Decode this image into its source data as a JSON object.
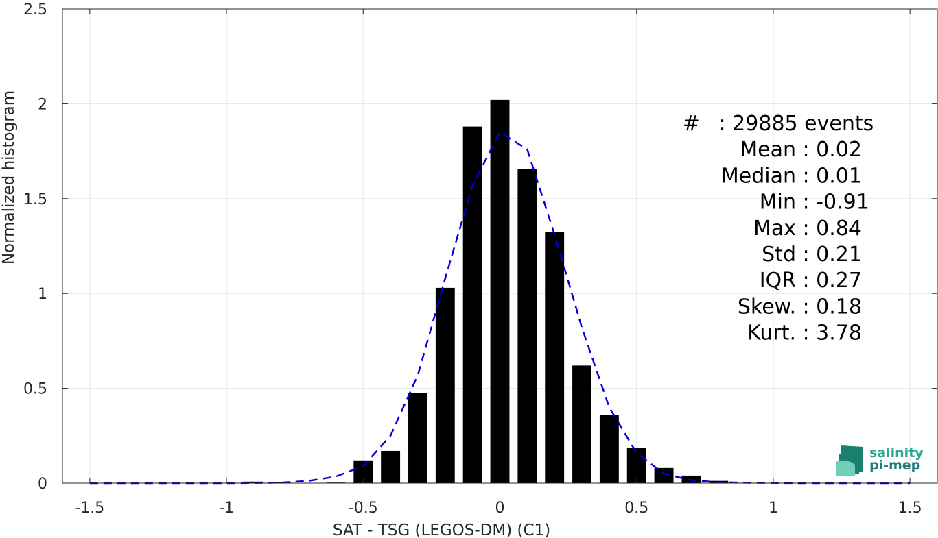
{
  "chart_data": {
    "type": "bar",
    "xlabel": "SAT - TSG (LEGOS-DM) (C1)",
    "ylabel": "Normalized histogram",
    "xlim": [
      -1.6,
      1.6
    ],
    "ylim": [
      0,
      2.5
    ],
    "xticks": [
      -1.5,
      -1,
      -0.5,
      0,
      0.5,
      1,
      1.5
    ],
    "xtick_labels": [
      "-1.5",
      "-1",
      "-0.5",
      "0",
      "0.5",
      "1",
      "1.5"
    ],
    "yticks": [
      0,
      0.5,
      1,
      1.5,
      2,
      2.5
    ],
    "ytick_labels": [
      "0",
      "0.5",
      "1",
      "1.5",
      "2",
      "2.5"
    ],
    "grid": true,
    "bar_width": 0.07,
    "bars": {
      "centers": [
        -0.9,
        -0.8,
        -0.6,
        -0.5,
        -0.4,
        -0.3,
        -0.2,
        -0.1,
        0.0,
        0.1,
        0.2,
        0.3,
        0.4,
        0.5,
        0.6,
        0.7,
        0.8
      ],
      "values": [
        0.008,
        0.006,
        0.003,
        0.12,
        0.17,
        0.475,
        1.03,
        1.88,
        2.02,
        1.655,
        1.325,
        0.62,
        0.36,
        0.185,
        0.08,
        0.04,
        0.012
      ],
      "color": "#000000"
    },
    "fit_curve": {
      "style": "dashed",
      "color": "#0000dd",
      "x": [
        -1.5,
        -1.4,
        -1.3,
        -1.2,
        -1.1,
        -1.0,
        -0.9,
        -0.8,
        -0.7,
        -0.6,
        -0.5,
        -0.4,
        -0.3,
        -0.2,
        -0.1,
        0.0,
        0.1,
        0.2,
        0.3,
        0.4,
        0.5,
        0.6,
        0.7,
        0.8,
        0.9,
        1.0,
        1.1,
        1.2,
        1.3,
        1.4,
        1.5
      ],
      "y": [
        0,
        0,
        0,
        0,
        0,
        0,
        0.001,
        0.003,
        0.012,
        0.035,
        0.09,
        0.25,
        0.57,
        1.08,
        1.57,
        1.85,
        1.76,
        1.31,
        0.82,
        0.4,
        0.16,
        0.05,
        0.015,
        0.005,
        0.002,
        0.001,
        0,
        0,
        0,
        0,
        0
      ]
    },
    "annotations": [
      {
        "key": "#",
        "sep": " : ",
        "value": "29885 events"
      },
      {
        "key": "Mean",
        "sep": " : ",
        "value": "0.02"
      },
      {
        "key": "Median",
        "sep": " : ",
        "value": "0.01"
      },
      {
        "key": "Min",
        "sep": " : ",
        "value": "-0.91"
      },
      {
        "key": "Max",
        "sep": " : ",
        "value": "0.84"
      },
      {
        "key": "Std",
        "sep": " : ",
        "value": "0.21"
      },
      {
        "key": "IQR",
        "sep": " : ",
        "value": "0.27"
      },
      {
        "key": "Skew.",
        "sep": " : ",
        "value": "0.18"
      },
      {
        "key": "Kurt.",
        "sep": " : ",
        "value": "3.78"
      }
    ]
  },
  "logo": {
    "line1": "salinity",
    "line2": "pi-mep",
    "colors": {
      "line1": "#2aa894",
      "line2": "#1f7f77",
      "mark_dark": "#17806f",
      "mark_light": "#6fcfb8"
    }
  }
}
